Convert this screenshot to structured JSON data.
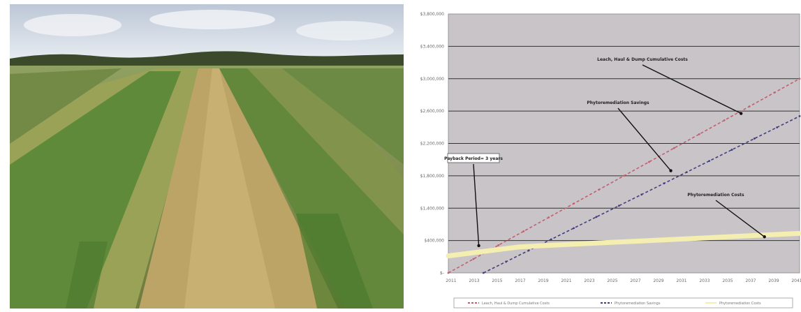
{
  "photo": {
    "alt": ""
  },
  "chart_data": {
    "type": "line",
    "title": "",
    "xlabel": "",
    "ylabel": "",
    "x_ticks": [
      "2011",
      "2013",
      "2015",
      "2017",
      "2019",
      "2021",
      "2023",
      "2025",
      "2027",
      "2029",
      "2031",
      "2033",
      "2035",
      "2037",
      "2039",
      "2041"
    ],
    "y_ticks": [
      "$-",
      "$400,000",
      "$1,400,000",
      "$1,800,000",
      "$2,200,000",
      "$2,600,000",
      "$3,000,000",
      "$3,400,000",
      "$3,800,000"
    ],
    "ylim": [
      0,
      3800000
    ],
    "xlim": [
      2011,
      2041
    ],
    "grid": true,
    "legend_position": "bottom",
    "series": [
      {
        "name": "Leach, Haul & Dump Cumulative Costs",
        "x": [
          2011,
          2041
        ],
        "y": [
          0,
          2850000
        ],
        "color": "#c06070",
        "style": "dashed"
      },
      {
        "name": "Phytoremediation Savings",
        "x": [
          2014,
          2041
        ],
        "y": [
          0,
          2300000
        ],
        "color": "#404080",
        "style": "dashed"
      },
      {
        "name": "Phytoremediation Costs",
        "x": [
          2011,
          2017,
          2019,
          2041
        ],
        "y": [
          250000,
          380000,
          400000,
          580000
        ],
        "color": "#f4eeb0",
        "style": "solid"
      }
    ],
    "annotations": [
      {
        "text": "Leach, Haul & Dump Cumulative Costs",
        "target_x": 2036,
        "target_y": 2340000
      },
      {
        "text": "Phytoremediation Savings",
        "target_x": 2030,
        "target_y": 1500000
      },
      {
        "text": "Phytoremediation Costs",
        "target_x": 2038,
        "target_y": 530000
      },
      {
        "text": "Payback Period= 3 years",
        "target_x": 2013.6,
        "target_y": 400000,
        "boxed": true
      }
    ]
  }
}
